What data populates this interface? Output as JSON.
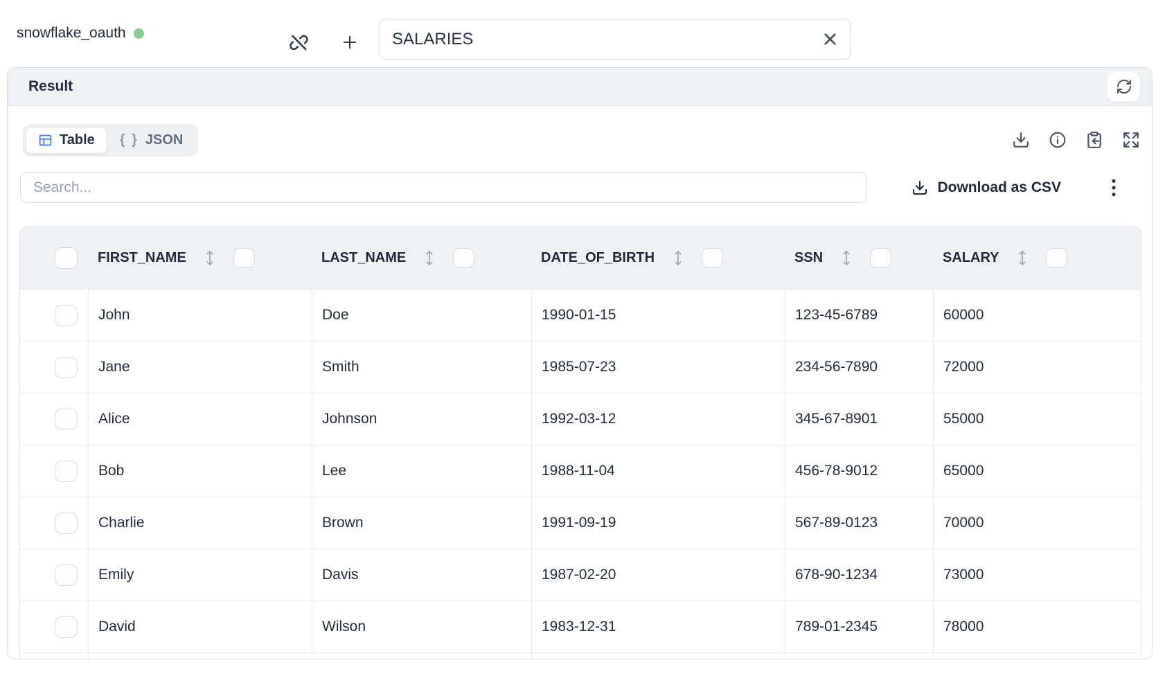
{
  "connection": {
    "name": "snowflake_oauth",
    "status_color": "#84cf97"
  },
  "topbar": {
    "table_name_value": "SALARIES"
  },
  "result_panel": {
    "title": "Result",
    "tabs": {
      "table_label": "Table",
      "json_braces": "{ }",
      "json_label": "JSON"
    },
    "search_placeholder": "Search...",
    "download_csv_label": "Download as CSV"
  },
  "table": {
    "columns": [
      "FIRST_NAME",
      "LAST_NAME",
      "DATE_OF_BIRTH",
      "SSN",
      "SALARY"
    ],
    "rows": [
      [
        "John",
        "Doe",
        "1990-01-15",
        "123-45-6789",
        "60000"
      ],
      [
        "Jane",
        "Smith",
        "1985-07-23",
        "234-56-7890",
        "72000"
      ],
      [
        "Alice",
        "Johnson",
        "1992-03-12",
        "345-67-8901",
        "55000"
      ],
      [
        "Bob",
        "Lee",
        "1988-11-04",
        "456-78-9012",
        "65000"
      ],
      [
        "Charlie",
        "Brown",
        "1991-09-19",
        "567-89-0123",
        "70000"
      ],
      [
        "Emily",
        "Davis",
        "1987-02-20",
        "678-90-1234",
        "73000"
      ],
      [
        "David",
        "Wilson",
        "1983-12-31",
        "789-01-2345",
        "78000"
      ]
    ]
  },
  "icons": {
    "unlink": "unlink-icon",
    "plus": "add-icon",
    "clear": "close-icon",
    "refresh": "refresh-icon",
    "table_view": "table-icon",
    "json_view": "braces-icon",
    "download": "download-icon",
    "info": "info-icon",
    "clipboard_paste": "clipboard-paste-icon",
    "expand": "expand-icon",
    "csv_download": "download-icon",
    "kebab": "kebab-menu-icon",
    "sort": "sort-vertical-icon"
  },
  "colors": {
    "accent_blue": "#4478f2",
    "status_green": "#84cf97",
    "header_bg": "#f0f1f4",
    "border": "#e2e5ea",
    "text_dark": "#232b3a",
    "text_gray": "#646d7d"
  }
}
